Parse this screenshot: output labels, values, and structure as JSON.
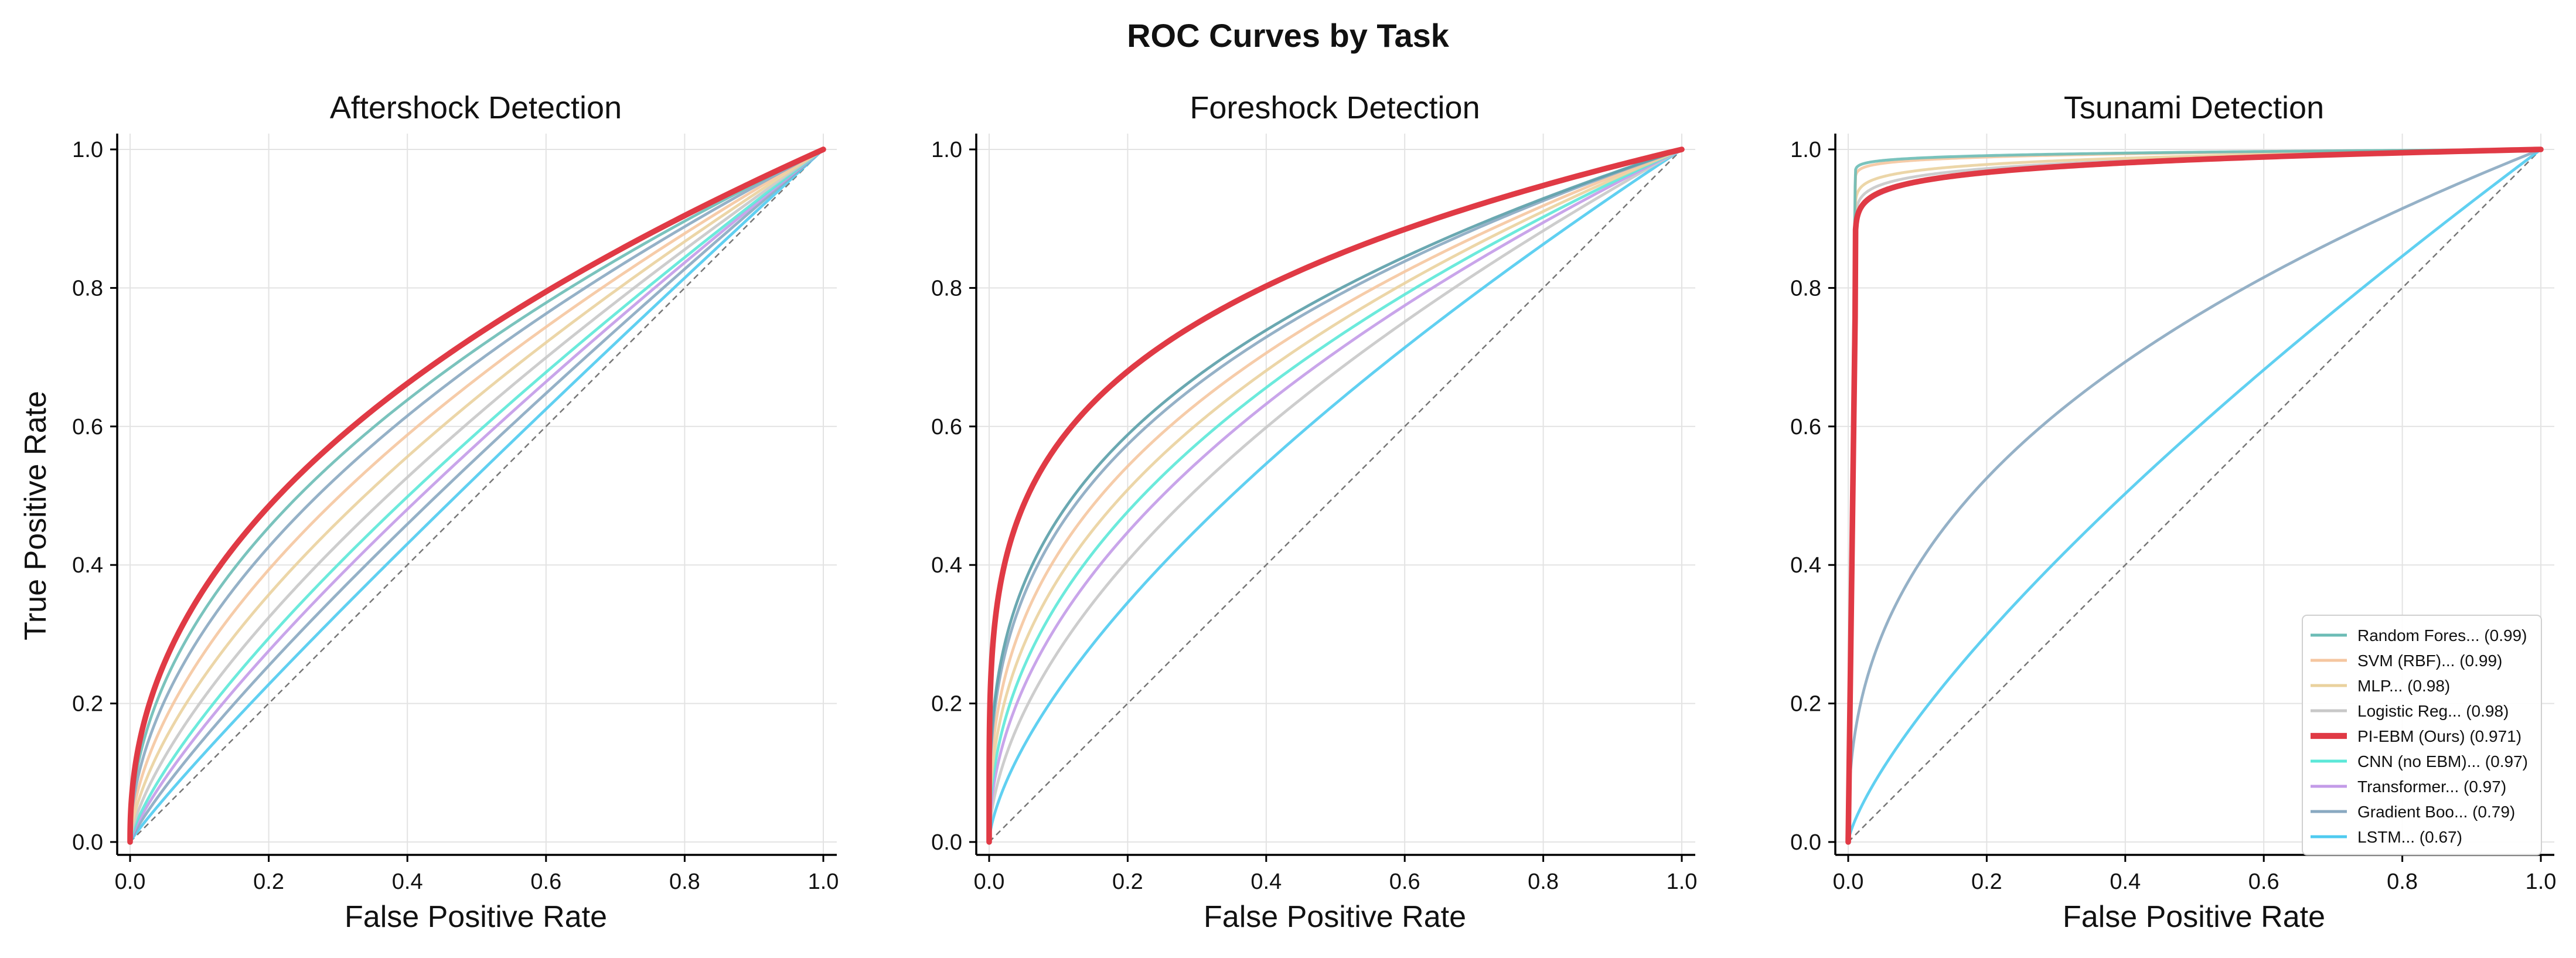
{
  "figure": {
    "title": "ROC Curves by Task"
  },
  "chart_data": [
    {
      "type": "line",
      "title": "Aftershock Detection",
      "xlabel": "False Positive Rate",
      "ylabel": "True Positive Rate",
      "xlim": [
        0,
        1
      ],
      "ylim": [
        0,
        1
      ],
      "xticks": [
        "0.0",
        "0.2",
        "0.4",
        "0.6",
        "0.8",
        "1.0"
      ],
      "yticks": [
        "0.0",
        "0.2",
        "0.4",
        "0.6",
        "0.8",
        "1.0"
      ],
      "grid": true,
      "diagonal": true,
      "series": [
        {
          "name": "LSTM",
          "color": "#4fcbf0",
          "alpha": 0.9,
          "width": 1.6,
          "exponent": 0.92
        },
        {
          "name": "Gradient Boosting",
          "color": "#8aa9c1",
          "alpha": 0.9,
          "width": 1.6,
          "exponent": 0.85
        },
        {
          "name": "Transformer",
          "color": "#c39be8",
          "alpha": 0.9,
          "width": 1.6,
          "exponent": 0.8
        },
        {
          "name": "CNN (no EBM)",
          "color": "#5ce8d8",
          "alpha": 0.9,
          "width": 1.6,
          "exponent": 0.76
        },
        {
          "name": "Logistic Regression",
          "color": "#c8c8c8",
          "alpha": 0.9,
          "width": 1.6,
          "exponent": 0.7
        },
        {
          "name": "MLP",
          "color": "#ead29e",
          "alpha": 0.9,
          "width": 1.6,
          "exponent": 0.64
        },
        {
          "name": "SVM (RBF)",
          "color": "#f5c6a0",
          "alpha": 0.9,
          "width": 1.6,
          "exponent": 0.58
        },
        {
          "name": "Gradient Boosting",
          "color": "#8aa9c1",
          "alpha": 0.9,
          "width": 1.6,
          "exponent": 0.53
        },
        {
          "name": "Random Forest",
          "color": "#6cbcb6",
          "alpha": 0.9,
          "width": 1.6,
          "exponent": 0.49
        },
        {
          "name": "PI-EBM (Ours)",
          "color": "#e03a45",
          "alpha": 1.0,
          "width": 3.2,
          "exponent": 0.45
        }
      ]
    },
    {
      "type": "line",
      "title": "Foreshock Detection",
      "xlabel": "False Positive Rate",
      "ylabel": "",
      "xlim": [
        0,
        1
      ],
      "ylim": [
        0,
        1
      ],
      "xticks": [
        "0.0",
        "0.2",
        "0.4",
        "0.6",
        "0.8",
        "1.0"
      ],
      "yticks": [
        "0.0",
        "0.2",
        "0.4",
        "0.6",
        "0.8",
        "1.0"
      ],
      "grid": true,
      "diagonal": true,
      "series": [
        {
          "name": "LSTM",
          "color": "#4fcbf0",
          "alpha": 0.9,
          "width": 1.6,
          "exponent": 0.66
        },
        {
          "name": "Logistic Regression",
          "color": "#c8c8c8",
          "alpha": 0.9,
          "width": 1.6,
          "exponent": 0.56
        },
        {
          "name": "Transformer",
          "color": "#c39be8",
          "alpha": 0.9,
          "width": 1.6,
          "exponent": 0.5
        },
        {
          "name": "CNN (no EBM)",
          "color": "#5ce8d8",
          "alpha": 0.9,
          "width": 1.6,
          "exponent": 0.46
        },
        {
          "name": "MLP",
          "color": "#ead29e",
          "alpha": 0.9,
          "width": 1.6,
          "exponent": 0.42
        },
        {
          "name": "SVM (RBF)",
          "color": "#f5c6a0",
          "alpha": 0.9,
          "width": 1.6,
          "exponent": 0.38
        },
        {
          "name": "Gradient Boosting",
          "color": "#8aa9c1",
          "alpha": 0.9,
          "width": 1.6,
          "exponent": 0.345
        },
        {
          "name": "Random Forest",
          "color": "#5a9ea8",
          "alpha": 0.9,
          "width": 1.6,
          "exponent": 0.33
        },
        {
          "name": "PI-EBM (Ours)",
          "color": "#e03a45",
          "alpha": 1.0,
          "width": 3.2,
          "exponent": 0.24
        }
      ]
    },
    {
      "type": "line",
      "title": "Tsunami Detection",
      "xlabel": "False Positive Rate",
      "ylabel": "",
      "xlim": [
        0,
        1
      ],
      "ylim": [
        0,
        1
      ],
      "xticks": [
        "0.0",
        "0.2",
        "0.4",
        "0.6",
        "0.8",
        "1.0"
      ],
      "yticks": [
        "0.0",
        "0.2",
        "0.4",
        "0.6",
        "0.8",
        "1.0"
      ],
      "grid": true,
      "diagonal": true,
      "legend": {
        "location": "lower-right",
        "entries": [
          {
            "label": "Random Fores... (0.99)",
            "color": "#6cbcb6",
            "width": 1.6
          },
          {
            "label": "SVM (RBF)... (0.99)",
            "color": "#f5c6a0",
            "width": 1.6
          },
          {
            "label": "MLP... (0.98)",
            "color": "#ead29e",
            "width": 1.6
          },
          {
            "label": "Logistic Reg... (0.98)",
            "color": "#c8c8c8",
            "width": 1.6
          },
          {
            "label": "PI-EBM (Ours) (0.971)",
            "color": "#e03a45",
            "width": 3.2
          },
          {
            "label": "CNN (no EBM)... (0.97)",
            "color": "#5ce8d8",
            "width": 1.6
          },
          {
            "label": "Transformer... (0.97)",
            "color": "#c39be8",
            "width": 1.6
          },
          {
            "label": "Gradient Boo... (0.79)",
            "color": "#8aa9c1",
            "width": 1.6
          },
          {
            "label": "LSTM... (0.67)",
            "color": "#4fcbf0",
            "width": 1.6
          }
        ]
      },
      "series": [
        {
          "name": "LSTM",
          "color": "#4fcbf0",
          "alpha": 0.9,
          "width": 1.6,
          "exponent": 0.75
        },
        {
          "name": "Gradient Boosting",
          "color": "#8aa9c1",
          "alpha": 0.9,
          "width": 1.6,
          "exponent": 0.4
        },
        {
          "name": "Transformer",
          "color": "#c39be8",
          "alpha": 0.9,
          "width": 1.6,
          "tpr_at_knee": 0.75,
          "knee_fpr": 0.01,
          "exponent": 0.09
        },
        {
          "name": "CNN (no EBM)",
          "color": "#5ce8d8",
          "alpha": 0.9,
          "width": 1.6,
          "tpr_at_knee": 0.752,
          "knee_fpr": 0.01,
          "exponent": 0.088
        },
        {
          "name": "Logistic Regression",
          "color": "#c8c8c8",
          "alpha": 0.9,
          "width": 1.6,
          "tpr_at_knee": 0.8,
          "knee_fpr": 0.01,
          "exponent": 0.09
        },
        {
          "name": "MLP",
          "color": "#ead29e",
          "alpha": 0.9,
          "width": 1.6,
          "tpr_at_knee": 0.85,
          "knee_fpr": 0.01,
          "exponent": 0.095
        },
        {
          "name": "SVM (RBF)",
          "color": "#f5c6a0",
          "alpha": 0.9,
          "width": 1.6,
          "tpr_at_knee": 0.92,
          "knee_fpr": 0.01,
          "exponent": 0.09
        },
        {
          "name": "Random Forest",
          "color": "#6cbcb6",
          "alpha": 0.9,
          "width": 1.6,
          "tpr_at_knee": 0.95,
          "knee_fpr": 0.01,
          "exponent": 0.12
        },
        {
          "name": "PI-EBM (Ours)",
          "color": "#e03a45",
          "alpha": 1.0,
          "width": 3.2,
          "tpr_at_knee": 0.76,
          "knee_fpr": 0.01,
          "exponent": 0.09
        }
      ]
    }
  ]
}
